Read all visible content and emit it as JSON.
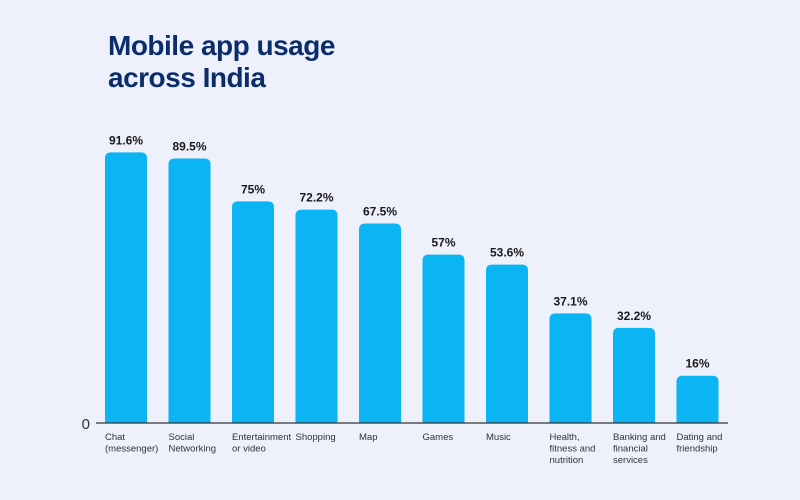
{
  "chart_data": {
    "type": "bar",
    "title": [
      "Mobile app usage",
      "across India"
    ],
    "categories": [
      [
        "Chat",
        "(messenger)"
      ],
      [
        "Social",
        "Networking"
      ],
      [
        "Entertainment",
        "or video"
      ],
      [
        "Shopping"
      ],
      [
        "Map"
      ],
      [
        "Games"
      ],
      [
        "Music"
      ],
      [
        "Health,",
        "fitness and",
        "nutrition"
      ],
      [
        "Banking and",
        "financial",
        "services"
      ],
      [
        "Dating and",
        "friendship"
      ]
    ],
    "values": [
      91.6,
      89.5,
      75,
      72.2,
      67.5,
      57,
      53.6,
      37.1,
      32.2,
      16
    ],
    "value_labels": [
      "91.6%",
      "89.5%",
      "75%",
      "72.2%",
      "67.5%",
      "57%",
      "53.6%",
      "37.1%",
      "32.2%",
      "16%"
    ],
    "ylim": [
      0,
      100
    ],
    "y_tick_label": "0",
    "xlabel": "",
    "ylabel": "",
    "grid": false
  },
  "colors": {
    "background": "#eef1fb",
    "title": "#0b2d6b",
    "bar": "#0bb4f2",
    "axis": "#333333"
  }
}
